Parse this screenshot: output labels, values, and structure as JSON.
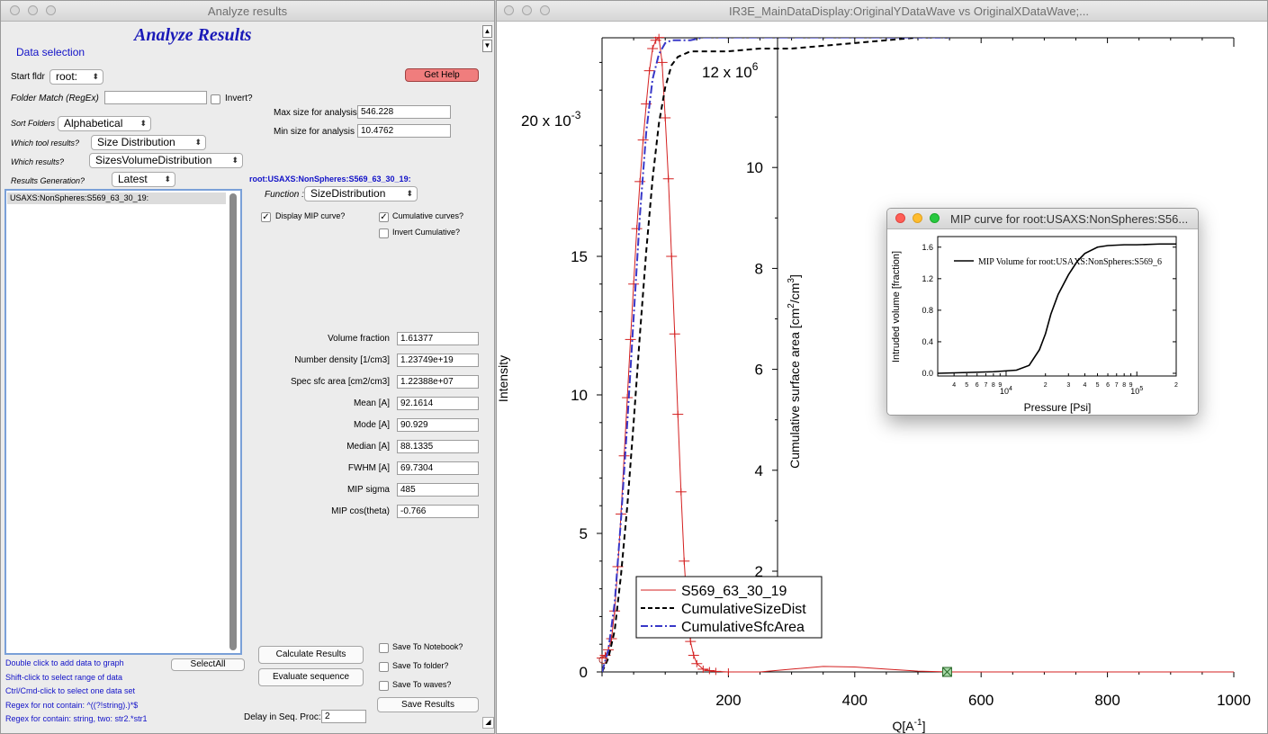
{
  "left_window": {
    "title": "Analyze results",
    "heading": "Analyze Results",
    "data_selection": "Data selection",
    "start_fldr_label": "Start fldr",
    "start_fldr_value": "root:",
    "folder_match_label": "Folder Match (RegEx)",
    "folder_match_value": "",
    "invert_label": "Invert?",
    "get_help": "Get Help",
    "max_size_label": "Max size for analysis",
    "max_size_value": "546.228",
    "min_size_label": "Min size for analysis",
    "min_size_value": "10.4762",
    "sort_folders_label": "Sort Folders",
    "sort_folders_value": "Alphabetical",
    "which_tool_label": "Which tool results?",
    "which_tool_value": "Size Distribution",
    "which_results_label": "Which results?",
    "which_results_value": "SizesVolumeDistribution",
    "results_gen_label": "Results Generation?",
    "results_gen_value": "Latest",
    "folder_path": "root:USAXS:NonSpheres:S569_63_30_19:",
    "function_label": "Function :",
    "function_value": "SizeDistribution",
    "list_items": [
      "USAXS:NonSpheres:S569_63_30_19:"
    ],
    "display_mip_label": "Display MIP curve?",
    "display_mip_checked": true,
    "cumulative_label": "Cumulative curves?",
    "cumulative_checked": true,
    "invert_cumulative_label": "Invert Cumulative?",
    "invert_cumulative_checked": false,
    "results": [
      {
        "label": "Volume fraction",
        "value": "1.61377"
      },
      {
        "label": "Number density [1/cm3]",
        "value": "1.23749e+19"
      },
      {
        "label": "Spec sfc area [cm2/cm3]",
        "value": "1.22388e+07"
      },
      {
        "label": "Mean   [A]",
        "value": "92.1614"
      },
      {
        "label": "Mode   [A]",
        "value": "90.929"
      },
      {
        "label": "Median [A]",
        "value": "88.1335"
      },
      {
        "label": "FWHM   [A]",
        "value": "69.7304"
      },
      {
        "label": "MIP sigma",
        "value": "485"
      },
      {
        "label": "MIP cos(theta)",
        "value": "-0.766"
      }
    ],
    "help_lines": [
      "Double click to add data to graph",
      "Shift-click to select range of data",
      "Ctrl/Cmd-click to select one data set",
      "Regex for not contain: ^((?!string).)*$",
      "Regex for contain:  string, two: str2.*str1"
    ],
    "select_all": "SelectAll",
    "calculate_results": "Calculate Results",
    "evaluate_sequence": "Evaluate sequence",
    "save_notebook_label": "Save To Notebook?",
    "save_folder_label": "Save To folder?",
    "save_waves_label": "Save To waves?",
    "save_results": "Save Results",
    "delay_label": "Delay in Seq. Proc:",
    "delay_value": "2"
  },
  "graph_window": {
    "title": "IR3E_MainDataDisplay:OriginalYDataWave vs OriginalXDataWave;...",
    "left_axis_label": "Intensity",
    "left_multiplier": "20 x 10",
    "left_multiplier_exp": "-3",
    "right_axis_label": "Cumulative surface area [cm",
    "right_multiplier": "12 x 10",
    "right_multiplier_exp": "6",
    "x_axis_label": "Q[A",
    "x_axis_exp": "-1",
    "legend": [
      "S569_63_30_19",
      "CumulativeSizeDist",
      "CumulativeSfcArea"
    ]
  },
  "mip_window": {
    "title": "MIP curve for root:USAXS:NonSpheres:S56...",
    "y_label": "Intruded volume [fraction]",
    "x_label": "Pressure [Psi]",
    "legend": "MIP Volume for root:USAXS:NonSpheres:S569_6"
  },
  "chart_data": [
    {
      "type": "line",
      "xlim": [
        0,
        1000
      ],
      "x_ticks": [
        200,
        400,
        600,
        800,
        1000
      ],
      "y_left_lim": [
        0,
        0.023
      ],
      "y_left_ticks": [
        0,
        5,
        10,
        15
      ],
      "y_right_ticks": [
        2,
        4,
        6,
        8,
        10
      ],
      "series": [
        {
          "name": "S569_63_30_19",
          "color": "#d42020",
          "style": "solid-markers",
          "x": [
            0,
            5,
            10,
            15,
            20,
            25,
            30,
            35,
            40,
            45,
            50,
            55,
            60,
            65,
            70,
            75,
            80,
            85,
            90,
            95,
            100,
            105,
            110,
            115,
            120,
            125,
            130,
            135,
            140,
            145,
            150,
            160,
            170,
            180,
            200,
            250,
            300,
            350,
            400,
            450,
            500,
            550,
            600,
            700,
            800,
            900,
            1000
          ],
          "y": [
            0.0005,
            0.0006,
            0.0008,
            0.0012,
            0.0022,
            0.0038,
            0.0057,
            0.0078,
            0.0099,
            0.012,
            0.014,
            0.016,
            0.0177,
            0.0192,
            0.0205,
            0.0217,
            0.0225,
            0.0228,
            0.0229,
            0.022,
            0.02,
            0.0178,
            0.015,
            0.0122,
            0.0093,
            0.0065,
            0.004,
            0.0022,
            0.0011,
            0.0006,
            0.0003,
            0.0001,
            5e-05,
            2e-05,
            0.0,
            0.0,
            0.0001,
            0.0002,
            0.00018,
            0.0001,
            3e-05,
            0.0,
            0.0,
            0.0,
            0.0,
            0.0,
            0.0
          ]
        },
        {
          "name": "CumulativeSizeDist",
          "color": "#000000",
          "style": "dashed",
          "x": [
            0,
            10,
            20,
            30,
            40,
            50,
            60,
            70,
            80,
            90,
            100,
            110,
            120,
            130,
            140,
            160,
            200,
            250,
            300,
            350,
            400,
            450,
            500,
            550
          ],
          "y": [
            0.0,
            0.0005,
            0.0015,
            0.0035,
            0.006,
            0.009,
            0.0122,
            0.0152,
            0.0178,
            0.0198,
            0.0211,
            0.0219,
            0.0222,
            0.0223,
            0.0224,
            0.0224,
            0.0224,
            0.0225,
            0.0225,
            0.0226,
            0.0227,
            0.0228,
            0.0229,
            0.0229
          ]
        },
        {
          "name": "CumulativeSfcArea",
          "color": "#3838c8",
          "style": "dash-dot",
          "x": [
            0,
            10,
            20,
            30,
            40,
            50,
            60,
            70,
            80,
            90,
            100,
            110,
            120,
            130,
            140,
            160,
            200,
            250,
            300,
            350,
            400,
            450,
            500,
            550
          ],
          "y": [
            0.0,
            0.0008,
            0.0025,
            0.0055,
            0.009,
            0.0128,
            0.0165,
            0.0195,
            0.0214,
            0.0223,
            0.0227,
            0.0228,
            0.0228,
            0.0228,
            0.0228,
            0.0229,
            0.0229,
            0.0229,
            0.0229,
            0.0229,
            0.0229,
            0.0229,
            0.0229,
            0.0229
          ]
        }
      ]
    },
    {
      "type": "line",
      "xlog": true,
      "x_ticks": [
        "10",
        "10"
      ],
      "y_ticks": [
        "0.0",
        "0.4",
        "0.8",
        "1.2",
        "1.6"
      ],
      "series": [
        {
          "name": "MIP Volume for root:USAXS:NonSpheres:S569_6",
          "color": "#000000",
          "x": [
            3000,
            5000,
            8000,
            12000,
            15000,
            18000,
            20000,
            22000,
            25000,
            30000,
            35000,
            40000,
            50000,
            60000,
            80000,
            100000,
            150000,
            200000
          ],
          "y": [
            0.0,
            0.01,
            0.02,
            0.04,
            0.1,
            0.3,
            0.5,
            0.75,
            1.0,
            1.25,
            1.42,
            1.52,
            1.6,
            1.62,
            1.63,
            1.63,
            1.64,
            1.64
          ]
        }
      ]
    }
  ]
}
